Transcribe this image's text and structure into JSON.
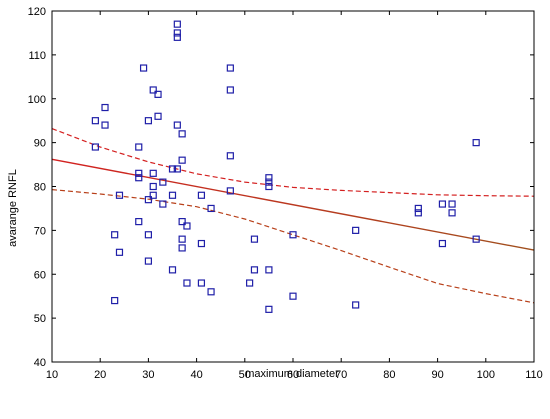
{
  "chart_data": {
    "type": "scatter",
    "title": "",
    "xlabel": "maximum diameter",
    "ylabel": "avarange RNFL",
    "xlim": [
      10,
      110
    ],
    "ylim": [
      40,
      120
    ],
    "xticks": [
      10,
      20,
      30,
      40,
      50,
      60,
      70,
      80,
      90,
      100,
      110
    ],
    "yticks": [
      40,
      50,
      60,
      70,
      80,
      90,
      100,
      110,
      120
    ],
    "grid": false,
    "colors": {
      "points": "#1f1fa8",
      "fit_line": "#d42020",
      "ci_upper": "#d42020",
      "ci_lower": "#b8401a"
    },
    "points": [
      [
        19,
        95
      ],
      [
        19,
        89
      ],
      [
        21,
        98
      ],
      [
        21,
        94
      ],
      [
        23,
        69
      ],
      [
        23,
        54
      ],
      [
        24,
        78
      ],
      [
        24,
        65
      ],
      [
        28,
        89
      ],
      [
        28,
        83
      ],
      [
        28,
        82
      ],
      [
        28,
        72
      ],
      [
        29,
        107
      ],
      [
        30,
        95
      ],
      [
        30,
        77
      ],
      [
        30,
        69
      ],
      [
        30,
        63
      ],
      [
        31,
        102
      ],
      [
        31,
        83
      ],
      [
        31,
        80
      ],
      [
        31,
        78
      ],
      [
        32,
        101
      ],
      [
        32,
        96
      ],
      [
        33,
        81
      ],
      [
        33,
        76
      ],
      [
        35,
        84
      ],
      [
        35,
        78
      ],
      [
        35,
        61
      ],
      [
        36,
        117
      ],
      [
        36,
        115
      ],
      [
        36,
        114
      ],
      [
        36,
        94
      ],
      [
        36,
        84
      ],
      [
        37,
        92
      ],
      [
        37,
        86
      ],
      [
        37,
        72
      ],
      [
        37,
        68
      ],
      [
        37,
        66
      ],
      [
        38,
        71
      ],
      [
        38,
        58
      ],
      [
        41,
        78
      ],
      [
        41,
        67
      ],
      [
        41,
        58
      ],
      [
        43,
        75
      ],
      [
        43,
        56
      ],
      [
        47,
        107
      ],
      [
        47,
        102
      ],
      [
        47,
        87
      ],
      [
        47,
        79
      ],
      [
        51,
        58
      ],
      [
        52,
        68
      ],
      [
        52,
        61
      ],
      [
        55,
        82
      ],
      [
        55,
        81
      ],
      [
        55,
        80
      ],
      [
        55,
        61
      ],
      [
        55,
        52
      ],
      [
        60,
        69
      ],
      [
        60,
        55
      ],
      [
        73,
        70
      ],
      [
        73,
        53
      ],
      [
        86,
        75
      ],
      [
        86,
        74
      ],
      [
        91,
        76
      ],
      [
        91,
        67
      ],
      [
        93,
        76
      ],
      [
        93,
        74
      ],
      [
        98,
        90
      ],
      [
        98,
        68
      ]
    ],
    "fit_line": [
      [
        10,
        86.2
      ],
      [
        110,
        65.5
      ]
    ],
    "ci_upper": [
      [
        10,
        93.2
      ],
      [
        20,
        89.0
      ],
      [
        30,
        85.6
      ],
      [
        40,
        82.9
      ],
      [
        50,
        81.0
      ],
      [
        60,
        79.8
      ],
      [
        70,
        79.1
      ],
      [
        80,
        78.6
      ],
      [
        90,
        78.1
      ],
      [
        100,
        77.9
      ],
      [
        110,
        77.8
      ]
    ],
    "ci_lower": [
      [
        10,
        79.3
      ],
      [
        20,
        78.3
      ],
      [
        30,
        77.1
      ],
      [
        40,
        75.4
      ],
      [
        50,
        72.6
      ],
      [
        60,
        69.0
      ],
      [
        70,
        65.4
      ],
      [
        80,
        61.6
      ],
      [
        90,
        57.9
      ],
      [
        100,
        55.6
      ],
      [
        110,
        53.5
      ]
    ]
  }
}
